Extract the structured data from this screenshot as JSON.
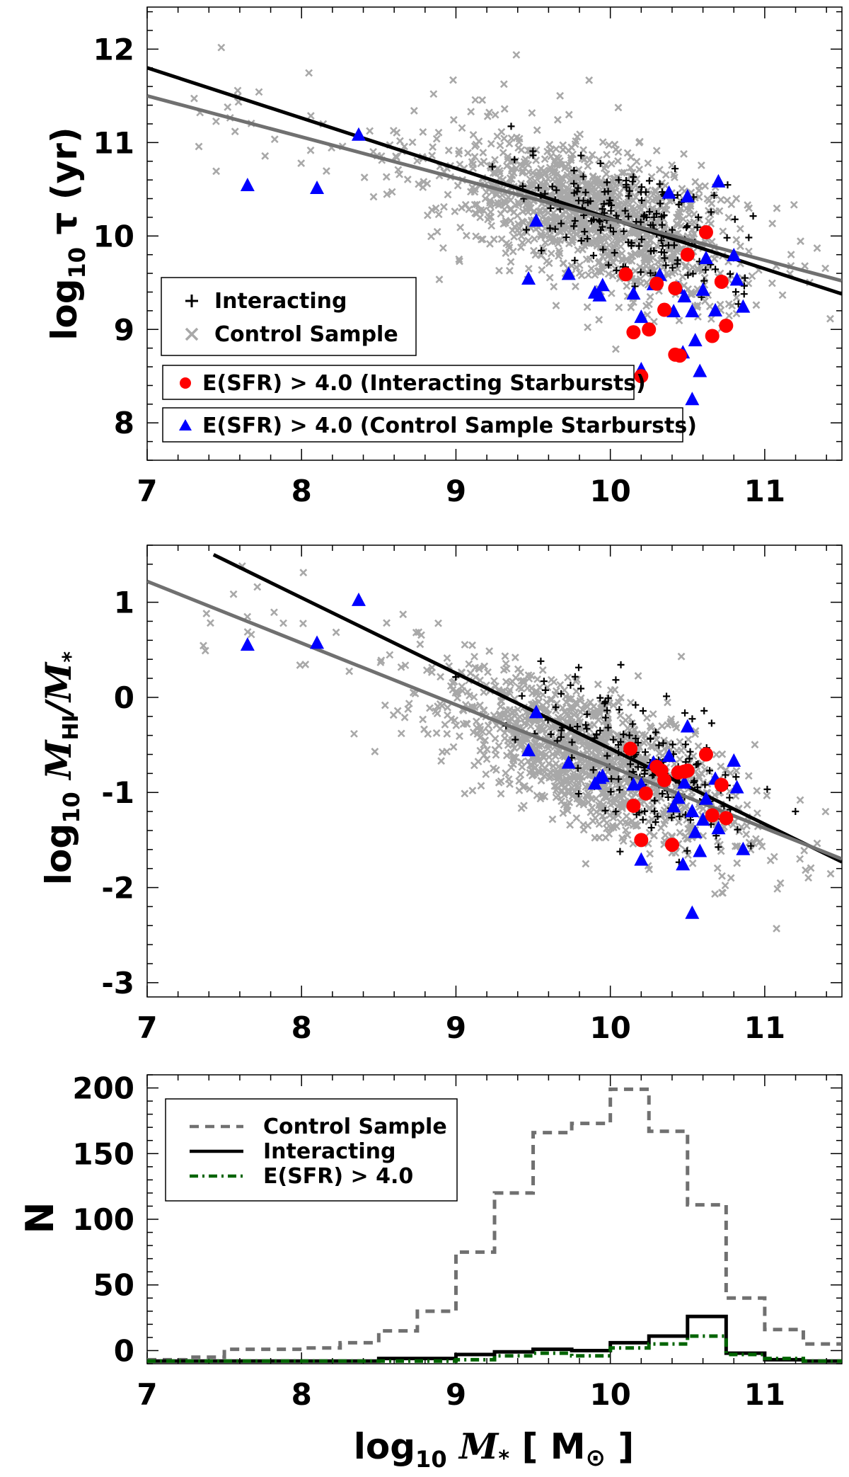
{
  "chart_data": [
    {
      "type": "scatter",
      "panel": "top",
      "ylabel_main": "log",
      "ylabel_sub": "10",
      "ylabel_tail": " τ (yr)",
      "xlim": [
        7,
        11.5
      ],
      "ylim": [
        7.6,
        12.45
      ],
      "xticks": [
        "7",
        "8",
        "9",
        "10",
        "11"
      ],
      "yticks": [
        "8",
        "9",
        "10",
        "11",
        "12"
      ],
      "legend": [
        "Interacting",
        "Control Sample"
      ],
      "legend_extra": [
        "E(SFR) > 4.0 (Interacting Starbursts)",
        "E(SFR) > 4.0 (Control Sample Starbursts)"
      ],
      "lines": [
        {
          "name": "Interacting fit",
          "color": "#000000",
          "x": [
            7,
            11.5
          ],
          "y": [
            11.8,
            9.38
          ]
        },
        {
          "name": "Control fit",
          "color": "#707070",
          "x": [
            7,
            11.5
          ],
          "y": [
            11.5,
            9.52
          ]
        }
      ],
      "interacting_starbursts": {
        "x": [
          10.15,
          10.1,
          10.25,
          10.3,
          10.35,
          10.42,
          10.45,
          10.5,
          10.62,
          10.66,
          10.72,
          10.75,
          10.2,
          10.42
        ],
        "y": [
          8.97,
          9.59,
          9.0,
          9.49,
          9.21,
          9.44,
          8.72,
          9.8,
          10.04,
          8.93,
          9.51,
          9.04,
          8.5,
          8.73
        ]
      },
      "control_starbursts": {
        "x": [
          7.65,
          8.1,
          8.37,
          9.47,
          9.52,
          9.73,
          9.9,
          9.95,
          10.15,
          10.2,
          10.28,
          10.32,
          10.38,
          10.41,
          10.44,
          10.48,
          10.5,
          10.53,
          10.55,
          10.58,
          10.62,
          10.68,
          10.7,
          10.8,
          10.82,
          10.86,
          10.2,
          10.53,
          10.47,
          9.93,
          10.6
        ],
        "y": [
          10.54,
          10.51,
          11.08,
          9.54,
          10.16,
          9.59,
          9.39,
          9.47,
          9.38,
          9.13,
          9.48,
          9.58,
          10.46,
          9.19,
          9.44,
          9.35,
          10.42,
          9.19,
          8.88,
          8.55,
          9.76,
          9.2,
          10.58,
          9.79,
          9.53,
          9.24,
          8.57,
          8.25,
          8.75,
          9.36,
          9.42
        ]
      }
    },
    {
      "type": "scatter",
      "panel": "middle",
      "ylabel_main": "log",
      "ylabel_sub": "10",
      "ylabel_tail": " M",
      "ylabel_hi": "HI",
      "ylabel_rest": "/M",
      "ylabel_star": "*",
      "xlim": [
        7,
        11.5
      ],
      "ylim": [
        -3.15,
        1.6
      ],
      "xticks": [
        "7",
        "8",
        "9",
        "10",
        "11"
      ],
      "yticks": [
        "1",
        "0",
        "-1",
        "-2",
        "-3"
      ],
      "lines": [
        {
          "name": "Interacting fit",
          "color": "#000000",
          "x": [
            7.43,
            11.5
          ],
          "y": [
            1.5,
            -1.73
          ]
        },
        {
          "name": "Control fit",
          "color": "#707070",
          "x": [
            7,
            11.5
          ],
          "y": [
            1.22,
            -1.7
          ]
        }
      ],
      "interacting_starbursts": {
        "x": [
          10.13,
          10.15,
          10.2,
          10.23,
          10.3,
          10.33,
          10.35,
          10.4,
          10.44,
          10.48,
          10.5,
          10.62,
          10.66,
          10.72,
          10.75
        ],
        "y": [
          -0.54,
          -1.14,
          -1.5,
          -1.01,
          -0.73,
          -0.77,
          -0.87,
          -1.55,
          -0.79,
          -0.78,
          -0.77,
          -0.6,
          -1.24,
          -0.92,
          -1.27
        ]
      },
      "control_starbursts": {
        "x": [
          7.65,
          8.1,
          8.37,
          9.47,
          9.52,
          9.73,
          9.9,
          9.95,
          10.15,
          10.2,
          10.28,
          10.32,
          10.38,
          10.41,
          10.44,
          10.48,
          10.5,
          10.53,
          10.55,
          10.58,
          10.62,
          10.68,
          10.7,
          10.8,
          10.82,
          10.86,
          10.2,
          10.53,
          10.47,
          9.93,
          10.6
        ],
        "y": [
          0.55,
          0.57,
          1.02,
          -0.56,
          -0.16,
          -0.69,
          -0.91,
          -0.83,
          -0.92,
          -1.71,
          -0.69,
          -0.72,
          -0.62,
          -1.15,
          -1.06,
          -0.9,
          -0.31,
          -1.2,
          -1.42,
          -1.62,
          -1.07,
          -0.86,
          -1.38,
          -0.67,
          -0.95,
          -1.6,
          -0.92,
          -2.27,
          -1.76,
          -0.85,
          -1.29
        ]
      }
    },
    {
      "type": "histogram",
      "panel": "bottom",
      "xlabel_main": "log",
      "xlabel_sub": "10",
      "xlabel_tail": " M",
      "xlabel_star": "*",
      "xlabel_unit": " [ M",
      "xlabel_sun": "⊙",
      "xlabel_close": " ]",
      "ylabel": "N",
      "xlim": [
        7,
        11.5
      ],
      "ylim": [
        -10,
        210
      ],
      "xticks": [
        "7",
        "8",
        "9",
        "10",
        "11"
      ],
      "yticks": [
        "0",
        "50",
        "100",
        "150",
        "200"
      ],
      "legend": [
        "Control Sample",
        "Interacting",
        "E(SFR) > 4.0"
      ],
      "bin_edges": [
        7.0,
        7.25,
        7.5,
        7.75,
        8.0,
        8.25,
        8.5,
        8.75,
        9.0,
        9.25,
        9.5,
        9.75,
        10.0,
        10.25,
        10.5,
        10.75,
        11.0,
        11.25,
        11.5
      ],
      "series": [
        {
          "name": "Control Sample",
          "color": "#707070",
          "style": "dashed",
          "values": [
            -7,
            -5,
            1,
            1,
            2,
            6,
            15,
            30,
            75,
            120,
            166,
            173,
            199,
            167,
            111,
            40,
            16,
            5
          ]
        },
        {
          "name": "Interacting",
          "color": "#000000",
          "style": "solid",
          "values": [
            -8,
            -8,
            -8,
            -8,
            -8,
            -8,
            -6,
            -6,
            -3,
            -1,
            1,
            0,
            6,
            11,
            26,
            -2,
            -7,
            -8
          ]
        },
        {
          "name": "E(SFR) > 4.0",
          "color": "#006400",
          "style": "dashdot",
          "values": [
            -8,
            -8,
            -8,
            -8,
            -8,
            -8,
            -8,
            -8,
            -7,
            -4,
            -2,
            -4,
            2,
            5,
            11,
            -3,
            -6,
            -8
          ]
        }
      ]
    }
  ]
}
